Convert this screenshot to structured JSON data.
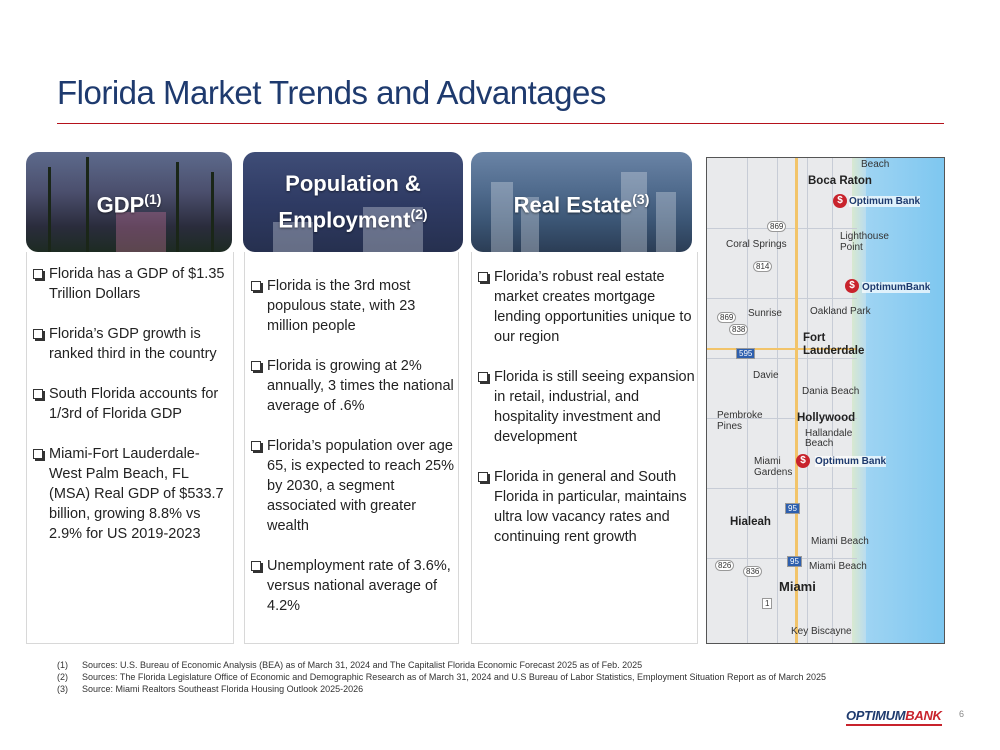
{
  "slide": {
    "title": "Florida Market Trends and Advantages",
    "page_number": "6"
  },
  "columns": {
    "gdp": {
      "header": "GDP",
      "ref": "(1)",
      "bullets": [
        "Florida has a GDP of $1.35 Trillion Dollars",
        "Florida’s GDP growth is ranked third in the country",
        "South Florida accounts for 1/3rd of Florida GDP",
        "Miami-Fort Lauderdale-West Palm Beach, FL (MSA) Real GDP of $533.7 billion, growing 8.8% vs 2.9% for US 2019-2023"
      ]
    },
    "population": {
      "header_line1": "Population &",
      "header_line2": "Employment",
      "ref": "(2)",
      "bullets": [
        "Florida is the 3rd most populous state, with 23 million people",
        "Florida is growing at 2% annually, 3 times the national average of .6%",
        "Florida’s population over age 65, is expected to reach 25% by 2030, a segment associated with greater wealth",
        "Unemployment rate of 3.6%, versus national average of 4.2%"
      ]
    },
    "real_estate": {
      "header": "Real Estate",
      "ref": "(3)",
      "bullets": [
        "Florida’s robust real estate market creates mortgage lending opportunities unique to our region",
        "Florida is still seeing expansion in retail, industrial, and hospitality investment and development",
        "Florida in general and South Florida in particular, maintains ultra low vacancy rates and continuing rent growth"
      ]
    }
  },
  "map": {
    "cities": {
      "beach_top": "Beach",
      "boca_raton": "Boca Raton",
      "coral_springs": "Coral Springs",
      "lighthouse_point": "Lighthouse Point",
      "sunrise": "Sunrise",
      "oakland_park": "Oakland Park",
      "fort_lauderdale": "Fort Lauderdale",
      "davie": "Davie",
      "dania_beach": "Dania Beach",
      "pembroke_pines": "Pembroke Pines",
      "hollywood": "Hollywood",
      "hallandale_beach": "Hallandale Beach",
      "miami_gardens": "Miami Gardens",
      "hialeah": "Hialeah",
      "miami_beach": "Miami Beach",
      "miami": "Miami",
      "key_biscayne": "Key Biscayne"
    },
    "routes": [
      "869",
      "814",
      "869",
      "838",
      "595",
      "95",
      "826",
      "836",
      "1",
      "95"
    ],
    "branch_labels": [
      "Optimum Bank",
      "OptimumBank",
      "Optimum Bank"
    ],
    "pin_symbol": "$"
  },
  "footnotes": [
    {
      "num": "(1)",
      "text": "Sources: U.S. Bureau of Economic Analysis (BEA) as of March 31, 2024 and The Capitalist Florida Economic Forecast 2025 as of Feb. 2025"
    },
    {
      "num": "(2)",
      "text": "Sources: The Florida Legislature Office of Economic and Demographic Research as of March 31, 2024 and U.S Bureau of Labor Statistics, Employment Situation Report as of March 2025"
    },
    {
      "num": "(3)",
      "text": "Source: Miami Realtors Southeast Florida Housing Outlook 2025-2026"
    }
  ],
  "logo": {
    "part1": "OPTIMUM",
    "part2": "BANK"
  },
  "colors": {
    "title": "#1e3a6e",
    "rule": "#b5121b",
    "pin": "#c8232c"
  }
}
